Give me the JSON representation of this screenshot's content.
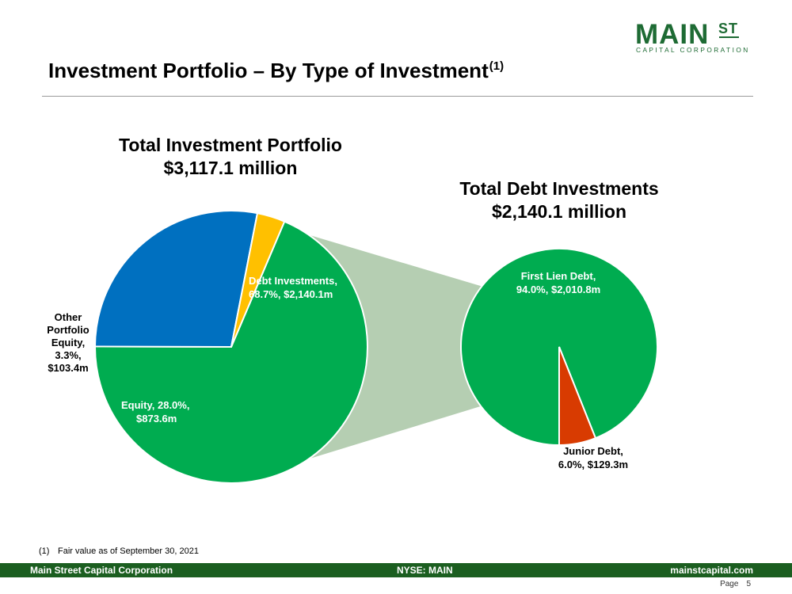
{
  "logo": {
    "main": "MAIN",
    "superscript": "ST",
    "subtitle": "CAPITAL CORPORATION"
  },
  "header": {
    "title": "Investment Portfolio – By Type of Investment",
    "footnote_ref": "(1)"
  },
  "colors": {
    "debt": "#00ac50",
    "equity": "#0070c0",
    "other_equity": "#ffc000",
    "junior_debt": "#d83b01",
    "connector": "#b5ceb2",
    "footer": "#1b5e20",
    "brand": "#1e6b34"
  },
  "chart_data": [
    {
      "type": "pie",
      "title": "Total Investment Portfolio",
      "subtitle": "$3,117.1 million",
      "slices": [
        {
          "label": "Debt Investments",
          "percent": 68.7,
          "value": 2140.1,
          "label_line1": "Debt Investments,",
          "label_line2": "68.7%, $2,140.1m"
        },
        {
          "label": "Equity",
          "percent": 28.0,
          "value": 873.6,
          "label_line1": "Equity, 28.0%,",
          "label_line2": "$873.6m"
        },
        {
          "label": "Other Portfolio Equity",
          "percent": 3.3,
          "value": 103.4,
          "label_lines": [
            "Other",
            "Portfolio",
            "Equity,",
            "3.3%,",
            "$103.4m"
          ]
        }
      ]
    },
    {
      "type": "pie",
      "title": "Total Debt Investments",
      "subtitle": "$2,140.1 million",
      "slices": [
        {
          "label": "First Lien Debt",
          "percent": 94.0,
          "value": 2010.8,
          "label_line1": "First Lien Debt,",
          "label_line2": "94.0%, $2,010.8m"
        },
        {
          "label": "Junior Debt",
          "percent": 6.0,
          "value": 129.3,
          "label_line1": "Junior Debt,",
          "label_line2": "6.0%, $129.3m"
        }
      ]
    }
  ],
  "footnote": {
    "number": "(1)",
    "text": "Fair value as of September 30, 2021"
  },
  "footer": {
    "left": "Main Street Capital Corporation",
    "center": "NYSE: MAIN",
    "right": "mainstcapital.com"
  },
  "page": {
    "label": "Page",
    "number": "5"
  }
}
